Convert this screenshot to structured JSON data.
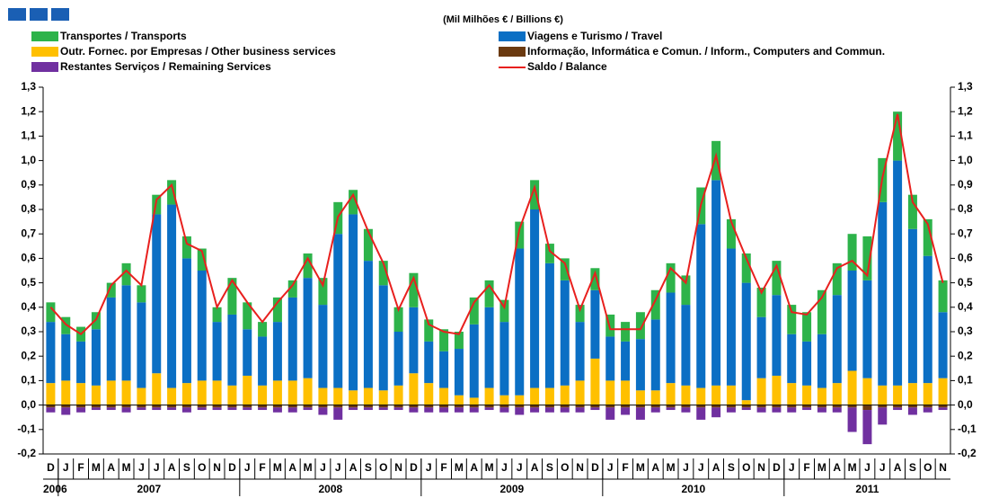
{
  "chart_data": {
    "type": "bar",
    "units": "(Mil Milhões € / Billions €)",
    "categories": [
      "D",
      "J",
      "F",
      "M",
      "A",
      "M",
      "J",
      "J",
      "A",
      "S",
      "O",
      "N",
      "D",
      "J",
      "F",
      "M",
      "A",
      "M",
      "J",
      "J",
      "A",
      "S",
      "O",
      "N",
      "D",
      "J",
      "F",
      "M",
      "A",
      "M",
      "J",
      "J",
      "A",
      "S",
      "O",
      "N",
      "D",
      "J",
      "F",
      "M",
      "A",
      "M",
      "J",
      "J",
      "A",
      "S",
      "O",
      "N",
      "D",
      "J",
      "F",
      "M",
      "A",
      "M",
      "J",
      "J",
      "A",
      "S",
      "O",
      "N"
    ],
    "year_labels": [
      "2006",
      "2007",
      "2008",
      "2009",
      "2010",
      "2011"
    ],
    "series": [
      {
        "name": "Outr. Fornec. por Empresas  / Other business services",
        "color": "#ffc000",
        "values": [
          0.09,
          0.1,
          0.09,
          0.08,
          0.1,
          0.1,
          0.07,
          0.13,
          0.07,
          0.09,
          0.1,
          0.1,
          0.08,
          0.12,
          0.08,
          0.1,
          0.1,
          0.11,
          0.07,
          0.07,
          0.06,
          0.07,
          0.06,
          0.08,
          0.13,
          0.09,
          0.07,
          0.04,
          0.03,
          0.07,
          0.04,
          0.04,
          0.07,
          0.07,
          0.08,
          0.1,
          0.19,
          0.1,
          0.1,
          0.06,
          0.06,
          0.09,
          0.08,
          0.07,
          0.08,
          0.08,
          0.02,
          0.11,
          0.12,
          0.09,
          0.08,
          0.07,
          0.09,
          0.14,
          0.11,
          0.08,
          0.08,
          0.09,
          0.09,
          0.11
        ]
      },
      {
        "name": "Viagens e Turismo / Travel",
        "color": "#0b6fc4",
        "values": [
          0.25,
          0.19,
          0.17,
          0.23,
          0.34,
          0.39,
          0.35,
          0.65,
          0.75,
          0.51,
          0.45,
          0.24,
          0.29,
          0.19,
          0.2,
          0.24,
          0.34,
          0.41,
          0.34,
          0.63,
          0.72,
          0.52,
          0.43,
          0.22,
          0.27,
          0.17,
          0.15,
          0.19,
          0.3,
          0.33,
          0.3,
          0.6,
          0.73,
          0.51,
          0.43,
          0.24,
          0.28,
          0.18,
          0.16,
          0.21,
          0.29,
          0.37,
          0.33,
          0.67,
          0.84,
          0.56,
          0.48,
          0.25,
          0.33,
          0.2,
          0.18,
          0.22,
          0.36,
          0.41,
          0.4,
          0.75,
          0.92,
          0.63,
          0.52,
          0.27
        ]
      },
      {
        "name": "Transportes / Transports",
        "color": "#2db34a",
        "values": [
          0.08,
          0.07,
          0.06,
          0.07,
          0.06,
          0.09,
          0.07,
          0.08,
          0.1,
          0.09,
          0.09,
          0.06,
          0.15,
          0.11,
          0.06,
          0.1,
          0.07,
          0.1,
          0.11,
          0.13,
          0.1,
          0.13,
          0.1,
          0.1,
          0.14,
          0.09,
          0.09,
          0.07,
          0.11,
          0.11,
          0.09,
          0.11,
          0.12,
          0.08,
          0.09,
          0.07,
          0.09,
          0.09,
          0.08,
          0.11,
          0.12,
          0.12,
          0.12,
          0.15,
          0.16,
          0.12,
          0.12,
          0.12,
          0.14,
          0.12,
          0.12,
          0.18,
          0.13,
          0.15,
          0.18,
          0.18,
          0.2,
          0.14,
          0.15,
          0.13
        ]
      },
      {
        "name": "Informação, Informática e Comun. / Inform., Computers and Commun.",
        "color": "#6b3a10",
        "values": [
          -0.01,
          -0.01,
          -0.01,
          -0.01,
          -0.01,
          -0.01,
          -0.01,
          -0.01,
          -0.01,
          -0.01,
          -0.01,
          -0.01,
          -0.01,
          -0.01,
          -0.01,
          -0.01,
          -0.01,
          -0.01,
          -0.01,
          -0.01,
          -0.01,
          -0.01,
          -0.01,
          -0.01,
          -0.01,
          -0.01,
          -0.01,
          -0.01,
          -0.01,
          -0.01,
          -0.01,
          -0.01,
          -0.01,
          -0.01,
          -0.01,
          -0.01,
          -0.01,
          -0.01,
          -0.01,
          -0.01,
          -0.01,
          -0.01,
          -0.01,
          -0.01,
          -0.01,
          -0.01,
          -0.01,
          -0.01,
          -0.01,
          -0.01,
          -0.01,
          -0.01,
          -0.01,
          -0.01,
          -0.02,
          -0.01,
          -0.01,
          -0.01,
          -0.01,
          -0.01
        ]
      },
      {
        "name": "Restantes Serviços / Remaining Services",
        "color": "#7030a0",
        "values": [
          -0.02,
          -0.03,
          -0.02,
          -0.01,
          -0.01,
          -0.02,
          -0.01,
          -0.01,
          -0.01,
          -0.02,
          -0.01,
          -0.01,
          -0.01,
          -0.01,
          -0.01,
          -0.02,
          -0.02,
          -0.01,
          -0.03,
          -0.05,
          -0.01,
          -0.01,
          -0.01,
          -0.01,
          -0.02,
          -0.02,
          -0.02,
          -0.02,
          -0.02,
          -0.01,
          -0.02,
          -0.03,
          -0.02,
          -0.02,
          -0.02,
          -0.02,
          -0.01,
          -0.05,
          -0.03,
          -0.05,
          -0.02,
          -0.01,
          -0.02,
          -0.05,
          -0.04,
          -0.02,
          -0.01,
          -0.02,
          -0.02,
          -0.02,
          -0.01,
          -0.02,
          -0.02,
          -0.1,
          -0.14,
          -0.07,
          -0.01,
          -0.03,
          -0.02,
          -0.01
        ]
      },
      {
        "name": "Saldo / Balance",
        "color": "#e8201e",
        "type": "line",
        "values": [
          0.4,
          0.33,
          0.29,
          0.35,
          0.49,
          0.55,
          0.49,
          0.84,
          0.9,
          0.66,
          0.63,
          0.4,
          0.51,
          0.42,
          0.34,
          0.42,
          0.49,
          0.6,
          0.49,
          0.77,
          0.86,
          0.71,
          0.58,
          0.39,
          0.52,
          0.33,
          0.3,
          0.29,
          0.42,
          0.49,
          0.4,
          0.72,
          0.89,
          0.63,
          0.58,
          0.39,
          0.54,
          0.31,
          0.31,
          0.31,
          0.43,
          0.56,
          0.5,
          0.82,
          1.02,
          0.75,
          0.6,
          0.46,
          0.57,
          0.38,
          0.37,
          0.44,
          0.56,
          0.59,
          0.53,
          0.93,
          1.19,
          0.83,
          0.74,
          0.5
        ]
      }
    ],
    "ylim": [
      -0.2,
      1.3
    ],
    "yticks": [
      {
        "value": -0.2,
        "label": "-0,2"
      },
      {
        "value": -0.1,
        "label": "-0,1"
      },
      {
        "value": 0,
        "label": "0,0"
      },
      {
        "value": 0.1,
        "label": "0,1"
      },
      {
        "value": 0.2,
        "label": "0,2"
      },
      {
        "value": 0.3,
        "label": "0,3"
      },
      {
        "value": 0.4,
        "label": "0,4"
      },
      {
        "value": 0.5,
        "label": "0,5"
      },
      {
        "value": 0.6,
        "label": "0,6"
      },
      {
        "value": 0.7,
        "label": "0,7"
      },
      {
        "value": 0.8,
        "label": "0,8"
      },
      {
        "value": 0.9,
        "label": "0,9"
      },
      {
        "value": 1.0,
        "label": "1,0"
      },
      {
        "value": 1.1,
        "label": "1,1"
      },
      {
        "value": 1.2,
        "label": "1,2"
      },
      {
        "value": 1.3,
        "label": "1,3"
      }
    ],
    "grid": false
  }
}
